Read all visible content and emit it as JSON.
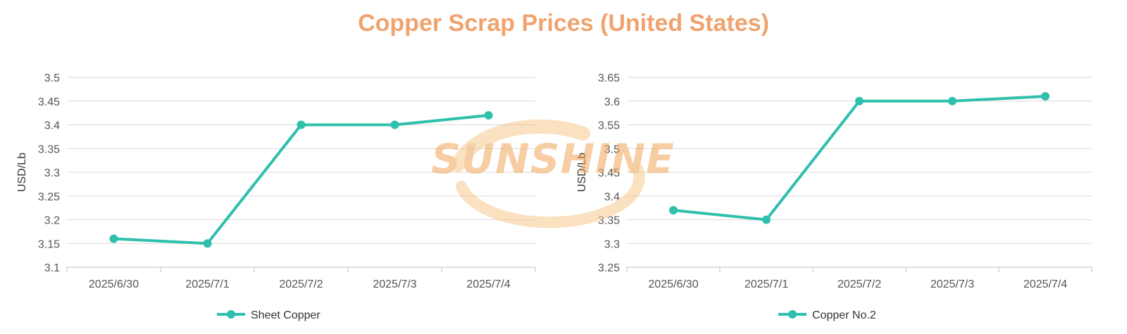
{
  "title": "Copper Scrap Prices (United States)",
  "watermark": "SUNSHINE",
  "colors": {
    "title": "#f0a36e",
    "series": "#2fbfad",
    "grid": "#d9d9d9",
    "watermark": "#f2a65a"
  },
  "chart_data": [
    {
      "type": "line",
      "categories": [
        "2025/6/30",
        "2025/7/1",
        "2025/7/2",
        "2025/7/3",
        "2025/7/4"
      ],
      "series": [
        {
          "name": "Sheet Copper",
          "values": [
            3.16,
            3.15,
            3.4,
            3.4,
            3.42
          ]
        }
      ],
      "ylabel": "USD/Lb",
      "ylim": [
        3.1,
        3.5
      ],
      "yticks": [
        "3.1",
        "3.15",
        "3.2",
        "3.25",
        "3.3",
        "3.35",
        "3.4",
        "3.45",
        "3.5"
      ],
      "grid": true,
      "legend": "bottom"
    },
    {
      "type": "line",
      "categories": [
        "2025/6/30",
        "2025/7/1",
        "2025/7/2",
        "2025/7/3",
        "2025/7/4"
      ],
      "series": [
        {
          "name": "Copper No.2",
          "values": [
            3.37,
            3.35,
            3.6,
            3.6,
            3.61
          ]
        }
      ],
      "ylabel": "USD/Lb",
      "ylim": [
        3.25,
        3.65
      ],
      "yticks": [
        "3.25",
        "3.3",
        "3.35",
        "3.4",
        "3.45",
        "3.5",
        "3.55",
        "3.6",
        "3.65"
      ],
      "grid": true,
      "legend": "bottom"
    }
  ]
}
